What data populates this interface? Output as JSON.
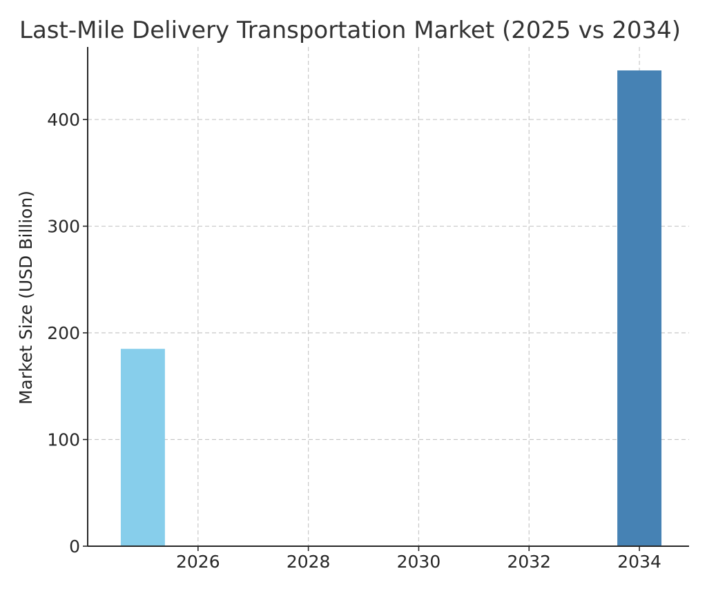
{
  "chart_data": {
    "type": "bar",
    "title": "Last-Mile Delivery Transportation Market (2025 vs 2034)",
    "xlabel": "",
    "ylabel": "Market Size (USD Billion)",
    "x": [
      2025,
      2034
    ],
    "values": [
      185,
      446
    ],
    "bar_colors": [
      "#87ceeb",
      "#4682b4"
    ],
    "xlim": [
      2024.0,
      2034.9
    ],
    "ylim": [
      0,
      468
    ],
    "xticks": [
      2026,
      2028,
      2030,
      2032,
      2034
    ],
    "yticks": [
      0,
      100,
      200,
      300,
      400
    ],
    "grid": true,
    "legend": "none"
  }
}
